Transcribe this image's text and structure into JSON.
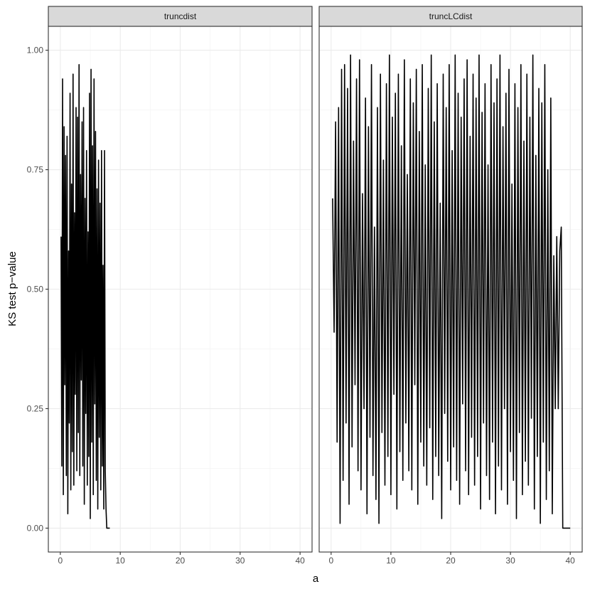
{
  "chart_data": {
    "type": "line",
    "x_label": "a",
    "y_label": "KS test p−value",
    "color": "#000000",
    "grid": true,
    "xlim": [
      -2,
      42
    ],
    "xticks": [
      0,
      10,
      20,
      30,
      40
    ],
    "ylim": [
      -0.05,
      1.05
    ],
    "yticks": [
      {
        "value": 0,
        "label": "0.00"
      },
      {
        "value": 0.25,
        "label": "0.25"
      },
      {
        "value": 0.5,
        "label": "0.50"
      },
      {
        "value": 0.75,
        "label": "0.75"
      },
      {
        "value": 1,
        "label": "1.00"
      }
    ],
    "panels": [
      {
        "title": "truncdist",
        "x": [
          0.125,
          0.25,
          0.375,
          0.5,
          0.625,
          0.75,
          0.875,
          1,
          1.125,
          1.25,
          1.375,
          1.5,
          1.625,
          1.75,
          1.875,
          2,
          2.125,
          2.25,
          2.375,
          2.5,
          2.625,
          2.75,
          2.875,
          3,
          3.125,
          3.25,
          3.375,
          3.5,
          3.625,
          3.75,
          3.875,
          4,
          4.125,
          4.25,
          4.375,
          4.5,
          4.625,
          4.75,
          4.875,
          5,
          5.125,
          5.25,
          5.375,
          5.5,
          5.625,
          5.75,
          5.875,
          6,
          6.125,
          6.25,
          6.375,
          6.5,
          6.625,
          6.75,
          6.875,
          7,
          7.125,
          7.25,
          7.375,
          7.5,
          7.625,
          7.75,
          8.25
        ],
        "values": [
          0.61,
          0.13,
          0.94,
          0.07,
          0.84,
          0.3,
          0.78,
          0.11,
          0.82,
          0.03,
          0.58,
          0.22,
          0.91,
          0.08,
          0.72,
          0.16,
          0.95,
          0.09,
          0.66,
          0.28,
          0.88,
          0.12,
          0.86,
          0.2,
          0.97,
          0.11,
          0.74,
          0.31,
          0.85,
          0.13,
          0.88,
          0.05,
          0.69,
          0.24,
          0.79,
          0.09,
          0.62,
          0.15,
          0.91,
          0.02,
          0.96,
          0.18,
          0.8,
          0.07,
          0.94,
          0.26,
          0.83,
          0.1,
          0.71,
          0.04,
          0.77,
          0.19,
          0.68,
          0.08,
          0.79,
          0.13,
          0.55,
          0.04,
          0.79,
          0.12,
          0.04,
          0,
          0
        ]
      },
      {
        "title": "truncLCdist",
        "x": [
          0.25,
          0.5,
          0.75,
          1,
          1.25,
          1.5,
          1.75,
          2,
          2.25,
          2.5,
          2.75,
          3,
          3.25,
          3.5,
          3.75,
          4,
          4.25,
          4.5,
          4.75,
          5,
          5.25,
          5.5,
          5.75,
          6,
          6.25,
          6.5,
          6.75,
          7,
          7.25,
          7.5,
          7.75,
          8,
          8.25,
          8.5,
          8.75,
          9,
          9.25,
          9.5,
          9.75,
          10,
          10.25,
          10.5,
          10.75,
          11,
          11.25,
          11.5,
          11.75,
          12,
          12.25,
          12.5,
          12.75,
          13,
          13.25,
          13.5,
          13.75,
          14,
          14.25,
          14.5,
          14.75,
          15,
          15.25,
          15.5,
          15.75,
          16,
          16.25,
          16.5,
          16.75,
          17,
          17.25,
          17.5,
          17.75,
          18,
          18.25,
          18.5,
          18.75,
          19,
          19.25,
          19.5,
          19.75,
          20,
          20.25,
          20.5,
          20.75,
          21,
          21.25,
          21.5,
          21.75,
          22,
          22.25,
          22.5,
          22.75,
          23,
          23.25,
          23.5,
          23.75,
          24,
          24.25,
          24.5,
          24.75,
          25,
          25.25,
          25.5,
          25.75,
          26,
          26.25,
          26.5,
          26.75,
          27,
          27.25,
          27.5,
          27.75,
          28,
          28.25,
          28.5,
          28.75,
          29,
          29.25,
          29.5,
          29.75,
          30,
          30.25,
          30.5,
          30.75,
          31,
          31.25,
          31.5,
          31.75,
          32,
          32.25,
          32.5,
          32.75,
          33,
          33.25,
          33.5,
          33.75,
          34,
          34.25,
          34.5,
          34.75,
          35,
          35.25,
          35.5,
          35.75,
          36,
          36.25,
          36.5,
          36.75,
          37,
          37.25,
          37.5,
          37.75,
          38,
          38.25,
          38.5,
          38.75,
          40
        ],
        "values": [
          0.69,
          0.41,
          0.85,
          0.18,
          0.88,
          0.01,
          0.96,
          0.1,
          0.97,
          0.22,
          0.92,
          0.05,
          0.99,
          0.17,
          0.81,
          0.3,
          0.94,
          0.12,
          0.98,
          0.08,
          0.7,
          0.25,
          0.9,
          0.03,
          0.84,
          0.19,
          0.97,
          0.11,
          0.63,
          0.06,
          0.88,
          0.01,
          0.95,
          0.2,
          0.77,
          0.09,
          0.93,
          0.15,
          0.99,
          0.07,
          0.86,
          0.28,
          0.91,
          0.04,
          0.95,
          0.16,
          0.8,
          0.1,
          0.98,
          0.22,
          0.74,
          0.12,
          0.94,
          0.08,
          0.89,
          0.3,
          0.96,
          0.05,
          0.83,
          0.18,
          0.97,
          0.13,
          0.76,
          0.09,
          0.92,
          0.21,
          0.99,
          0.06,
          0.85,
          0.15,
          0.93,
          0.11,
          0.68,
          0.02,
          0.95,
          0.24,
          0.88,
          0.14,
          0.97,
          0.08,
          0.79,
          0.17,
          0.99,
          0.1,
          0.91,
          0.05,
          0.86,
          0.26,
          0.94,
          0.12,
          0.98,
          0.07,
          0.82,
          0.19,
          0.95,
          0.09,
          0.9,
          0.15,
          0.99,
          0.04,
          0.87,
          0.22,
          0.93,
          0.11,
          0.76,
          0.06,
          0.97,
          0.18,
          0.89,
          0.03,
          0.94,
          0.13,
          0.99,
          0.08,
          0.84,
          0.25,
          0.91,
          0.05,
          0.96,
          0.16,
          0.72,
          0.1,
          0.93,
          0.02,
          0.88,
          0.2,
          0.97,
          0.07,
          0.81,
          0.14,
          0.95,
          0.09,
          0.86,
          0.23,
          0.99,
          0.04,
          0.78,
          0.15,
          0.92,
          0.01,
          0.89,
          0.18,
          0.97,
          0.06,
          0.75,
          0.12,
          0.9,
          0.03,
          0.57,
          0.25,
          0.61,
          0.25,
          0.58,
          0.63,
          0,
          0
        ]
      }
    ]
  }
}
